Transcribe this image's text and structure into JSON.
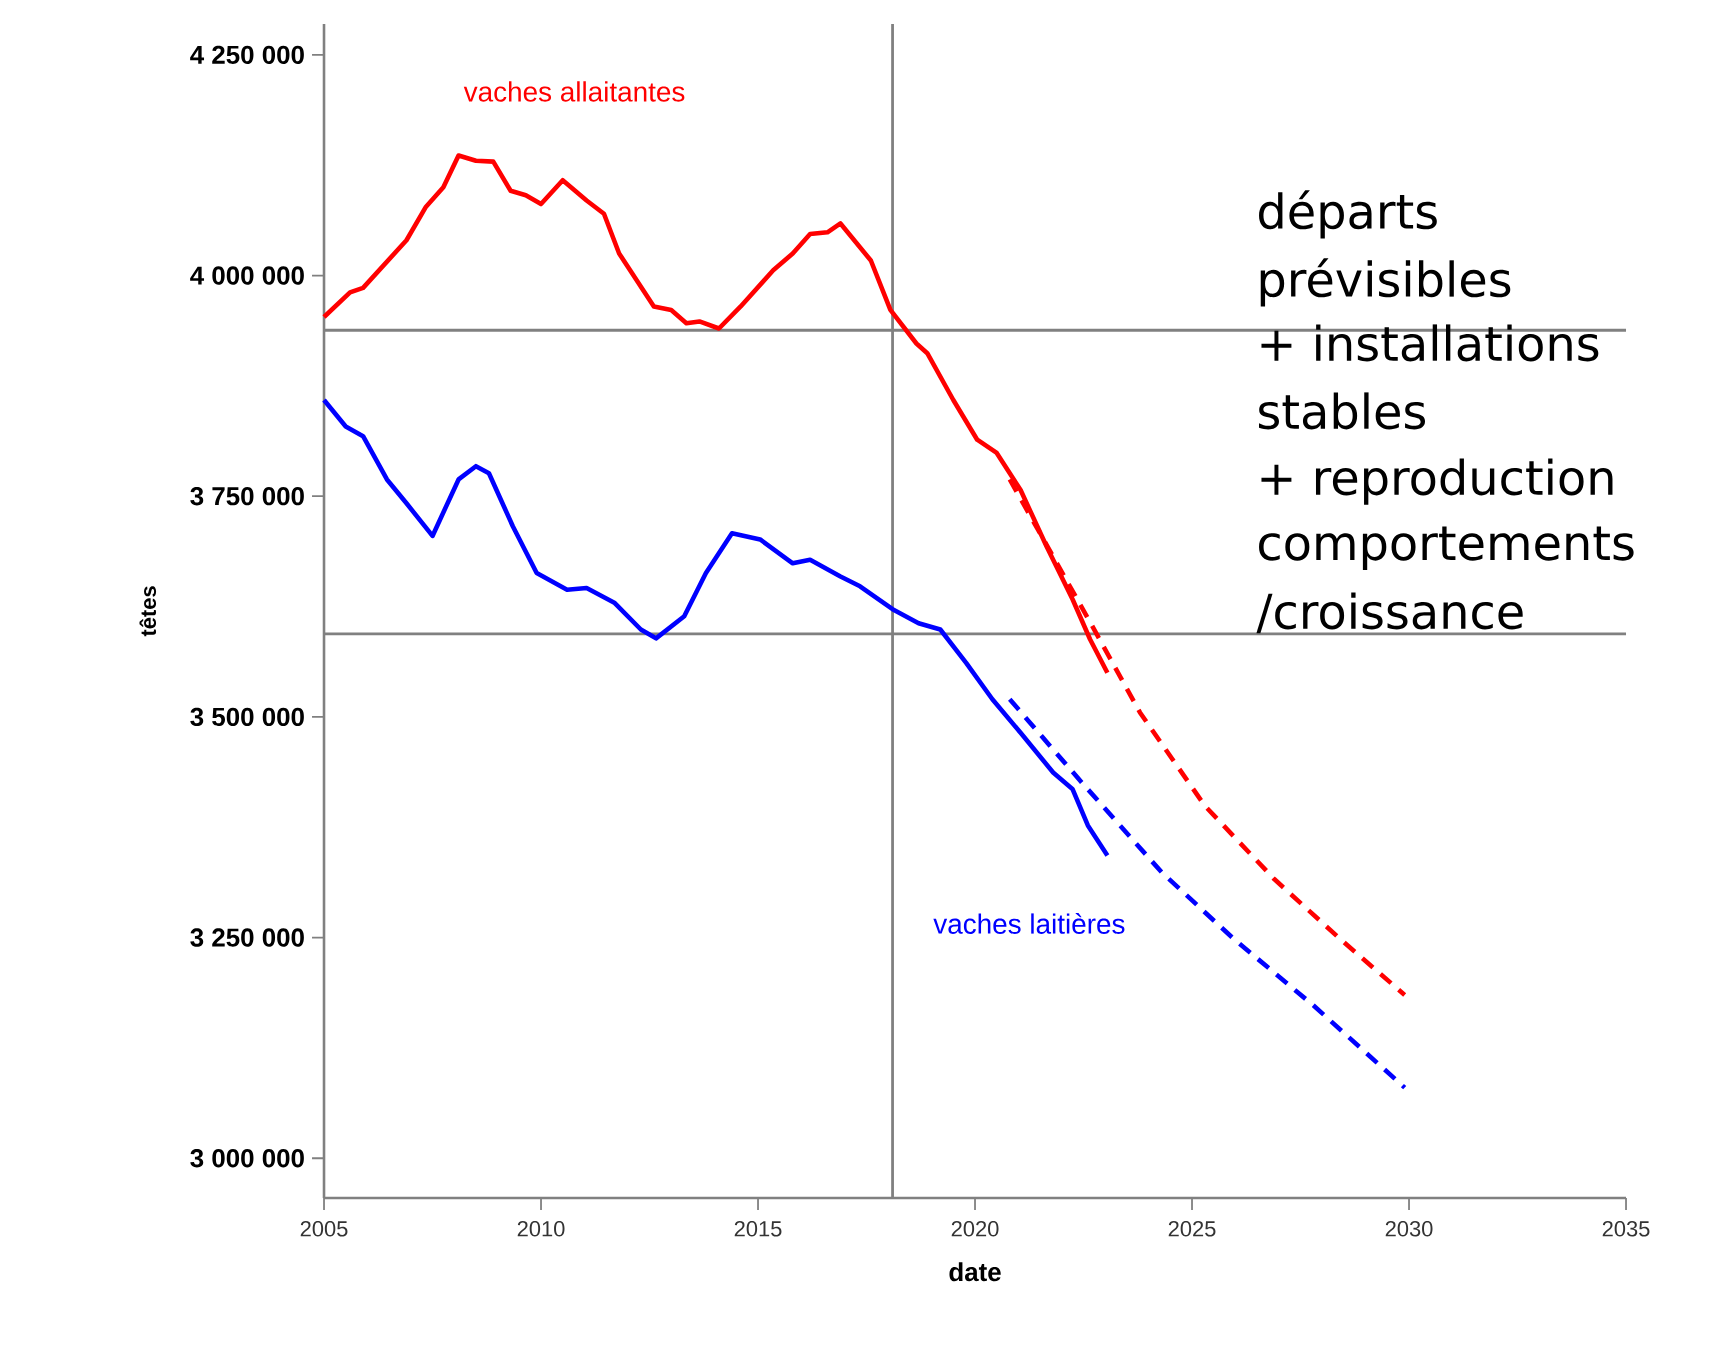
{
  "chart_data": {
    "type": "line",
    "xlabel": "date",
    "ylabel": "têtes",
    "xlim": [
      2005,
      2035
    ],
    "ylim": [
      2955000,
      4285000
    ],
    "xticks": [
      2005,
      2010,
      2015,
      2020,
      2025,
      2030,
      2035
    ],
    "yticks": [
      {
        "value": 3000000,
        "label": "3 000 000"
      },
      {
        "value": 3250000,
        "label": "3 250 000"
      },
      {
        "value": 3500000,
        "label": "3 500 000"
      },
      {
        "value": 3750000,
        "label": "3 750 000"
      },
      {
        "value": 4000000,
        "label": "4 000 000"
      },
      {
        "value": 4250000,
        "label": "4 250 000"
      }
    ],
    "grid": false,
    "legend": false,
    "marker": "none",
    "series": [
      {
        "name": "vaches allaitantes",
        "color": "#ff0000",
        "line_style": "solid",
        "x": [
          2005.0,
          2005.6,
          2005.9,
          2006.9,
          2007.35,
          2007.75,
          2008.1,
          2008.5,
          2008.9,
          2009.3,
          2009.65,
          2010.0,
          2010.5,
          2011.05,
          2011.45,
          2011.8,
          2012.6,
          2013.0,
          2013.35,
          2013.65,
          2014.1,
          2014.6,
          2015.35,
          2015.8,
          2016.2,
          2016.6,
          2016.9,
          2017.6,
          2018.05,
          2018.65,
          2018.9,
          2019.5,
          2020.05,
          2020.5,
          2021.05,
          2021.65,
          2022.25,
          2022.65,
          2023.05
        ],
        "values": [
          3953000,
          3981000,
          3986000,
          4040000,
          4078000,
          4100000,
          4136000,
          4130000,
          4129000,
          4096000,
          4091000,
          4081000,
          4108000,
          4085000,
          4070000,
          4025000,
          3965000,
          3961000,
          3946000,
          3948000,
          3940000,
          3965000,
          4006000,
          4025000,
          4047000,
          4049000,
          4059000,
          4017000,
          3961000,
          3923000,
          3912000,
          3859000,
          3814000,
          3799000,
          3757000,
          3693000,
          3633000,
          3588000,
          3550000
        ]
      },
      {
        "color": "#ff0000",
        "line_style": "dashed",
        "x": [
          2020.8,
          2022.7,
          2023.8,
          2025.3,
          2026.9,
          2028.4,
          2029.9
        ],
        "values": [
          3769000,
          3603000,
          3505000,
          3399000,
          3316000,
          3249000,
          3185000
        ]
      },
      {
        "name": "vaches laitières",
        "color": "#0000ff",
        "line_style": "solid",
        "x": [
          2005.0,
          2005.5,
          2005.9,
          2006.45,
          2006.9,
          2007.5,
          2008.1,
          2008.5,
          2008.8,
          2009.35,
          2009.9,
          2010.6,
          2011.05,
          2011.7,
          2012.3,
          2012.65,
          2013.3,
          2013.8,
          2014.4,
          2015.05,
          2015.8,
          2016.2,
          2016.9,
          2017.35,
          2018.1,
          2018.7,
          2019.2,
          2019.8,
          2020.4,
          2021.05,
          2021.8,
          2022.25,
          2022.6,
          2023.05
        ],
        "values": [
          3859000,
          3829000,
          3818000,
          3769000,
          3742000,
          3705000,
          3769000,
          3784000,
          3776000,
          3716000,
          3663000,
          3644000,
          3646000,
          3629000,
          3599000,
          3589000,
          3614000,
          3663000,
          3708000,
          3701000,
          3674000,
          3678000,
          3659000,
          3648000,
          3622000,
          3606000,
          3599000,
          3561000,
          3520000,
          3482000,
          3437000,
          3418000,
          3377000,
          3343000
        ]
      },
      {
        "color": "#0000ff",
        "line_style": "dashed",
        "x": [
          2020.8,
          2022.4,
          2024.3,
          2025.95,
          2027.8,
          2029.9
        ],
        "values": [
          3520000,
          3429000,
          3324000,
          3249000,
          3173000,
          3080000
        ]
      }
    ],
    "ref_lines": [
      {
        "axis": "x",
        "value": 2018.1,
        "color": "#808080"
      },
      {
        "axis": "y",
        "value": 3938000,
        "color": "#808080"
      },
      {
        "axis": "y",
        "value": 3594000,
        "color": "#808080"
      }
    ],
    "annotations": [
      "départs",
      "prévisibles",
      "+ installations",
      "stables",
      "+ reproduction",
      "comportements",
      "/croissance"
    ]
  }
}
